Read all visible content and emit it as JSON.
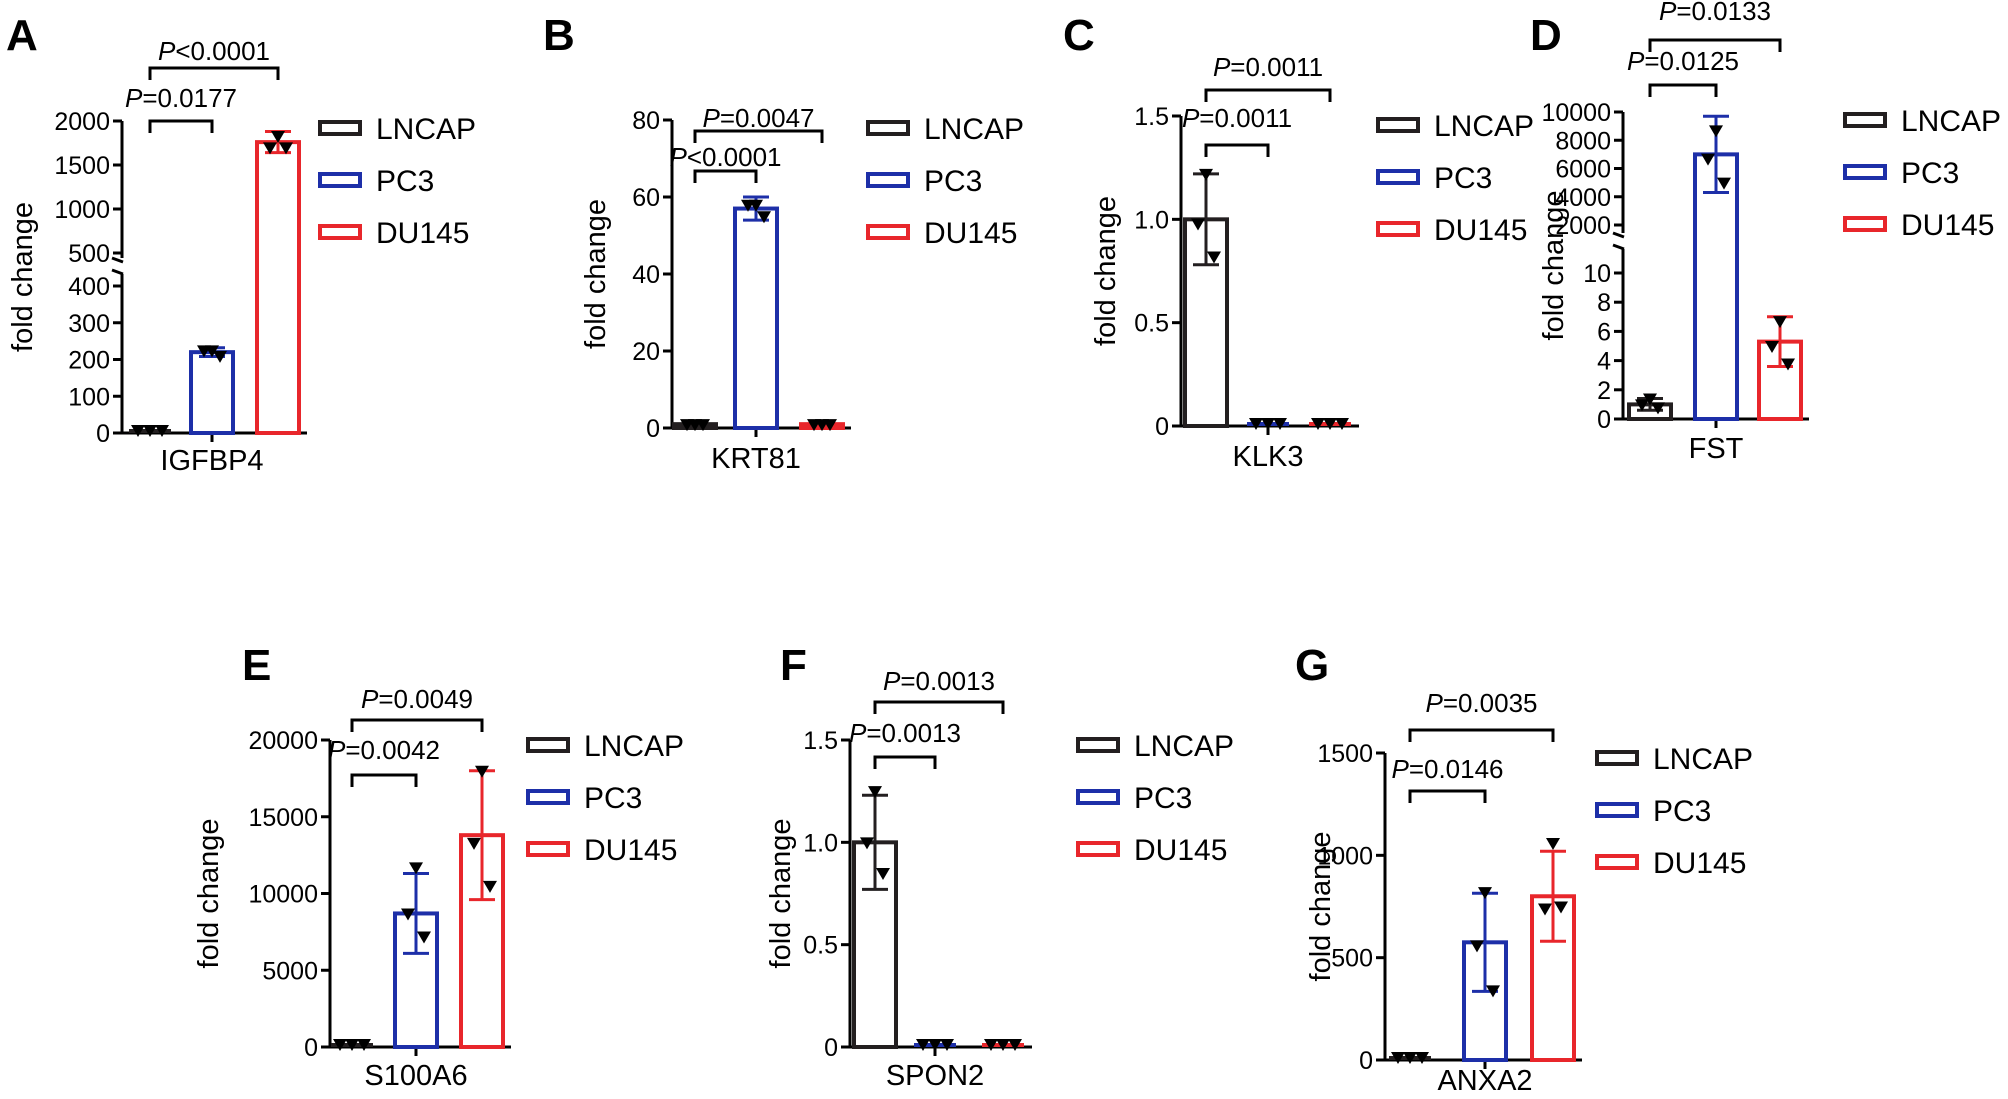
{
  "figure": {
    "description_legend": [
      "LNCAP",
      "PC3",
      "DU145"
    ]
  },
  "colors": {
    "LNCAP": "#231f20",
    "PC3": "#1d2fa8",
    "DU145": "#e8262b",
    "axis": "#000000",
    "point": "#000000"
  },
  "chart_data": [
    {
      "panel": "A",
      "type": "bar",
      "gene": "IGFBP4",
      "ylabel": "fold change",
      "broken_axis": true,
      "lower_range": [
        0,
        400
      ],
      "lower_ticks": [
        0,
        100,
        200,
        300,
        400
      ],
      "upper_range": [
        500,
        2000
      ],
      "upper_ticks": [
        500,
        1000,
        1500,
        2000
      ],
      "categories": [
        "LNCAP",
        "PC3",
        "DU145"
      ],
      "values": [
        1,
        220,
        1760
      ],
      "errors": [
        0,
        12,
        120
      ],
      "points": [
        [
          1,
          1,
          1
        ],
        [
          225,
          225,
          210
        ],
        [
          1830,
          1700,
          1700
        ]
      ],
      "pvalues": [
        {
          "prefix": "P",
          "text": "=0.0177",
          "from": 0,
          "to": 1
        },
        {
          "prefix": "P",
          "text": "<0.0001",
          "from": 0,
          "to": 2
        }
      ]
    },
    {
      "panel": "B",
      "type": "bar",
      "gene": "KRT81",
      "ylabel": "fold change",
      "broken_axis": false,
      "range": [
        0,
        80
      ],
      "ticks": [
        0,
        20,
        40,
        60,
        80
      ],
      "categories": [
        "LNCAP",
        "PC3",
        "DU145"
      ],
      "values": [
        1,
        57,
        1
      ],
      "errors": [
        0,
        3,
        0
      ],
      "points": [
        [
          1,
          1,
          1
        ],
        [
          58,
          58,
          55
        ],
        [
          1,
          1,
          1
        ]
      ],
      "pvalues": [
        {
          "prefix": "P",
          "text": "<0.0001",
          "from": 0,
          "to": 1
        },
        {
          "prefix": "P",
          "text": "=0.0047",
          "from": 0,
          "to": 2
        }
      ]
    },
    {
      "panel": "C",
      "type": "bar",
      "gene": "KLK3",
      "ylabel": "fold change",
      "broken_axis": false,
      "range": [
        0,
        1.5
      ],
      "ticks": [
        0,
        0.5,
        1.0,
        1.5
      ],
      "tick_labels": [
        "0",
        "0.5",
        "1.0",
        "1.5"
      ],
      "categories": [
        "LNCAP",
        "PC3",
        "DU145"
      ],
      "values": [
        1.0,
        0.01,
        0.01
      ],
      "errors": [
        0.22,
        0,
        0
      ],
      "points": [
        [
          1.22,
          0.98,
          0.82
        ],
        [
          0.01,
          0.01,
          0.01
        ],
        [
          0.01,
          0.01,
          0.01
        ]
      ],
      "pvalues": [
        {
          "prefix": "P",
          "text": "=0.0011",
          "from": 0,
          "to": 1
        },
        {
          "prefix": "P",
          "text": "=0.0011",
          "from": 0,
          "to": 2
        }
      ]
    },
    {
      "panel": "D",
      "type": "bar",
      "gene": "FST",
      "ylabel": "fold change",
      "broken_axis": true,
      "lower_range": [
        0,
        10
      ],
      "lower_ticks": [
        0,
        2,
        4,
        6,
        8,
        10
      ],
      "upper_range": [
        2000,
        10000
      ],
      "upper_ticks": [
        2000,
        4000,
        6000,
        8000,
        10000
      ],
      "categories": [
        "LNCAP",
        "PC3",
        "DU145"
      ],
      "values": [
        1.0,
        7000,
        5.3
      ],
      "errors": [
        0.4,
        2700,
        1.7
      ],
      "points": [
        [
          1.4,
          1.0,
          0.8
        ],
        [
          8700,
          6700,
          5000
        ],
        [
          6.7,
          5.0,
          3.8
        ]
      ],
      "pvalues": [
        {
          "prefix": "P",
          "text": "=0.0125",
          "from": 0,
          "to": 1
        },
        {
          "prefix": "P",
          "text": "=0.0133",
          "from": 0,
          "to": 2
        }
      ]
    },
    {
      "panel": "E",
      "type": "bar",
      "gene": "S100A6",
      "ylabel": "fold change",
      "broken_axis": false,
      "range": [
        0,
        20000
      ],
      "ticks": [
        0,
        5000,
        10000,
        15000,
        20000
      ],
      "categories": [
        "LNCAP",
        "PC3",
        "DU145"
      ],
      "values": [
        10,
        8700,
        13800
      ],
      "errors": [
        0,
        2600,
        4200
      ],
      "points": [
        [
          10,
          10,
          10
        ],
        [
          11700,
          8700,
          7200
        ],
        [
          18000,
          13300,
          10500
        ]
      ],
      "pvalues": [
        {
          "prefix": "P",
          "text": "=0.0042",
          "from": 0,
          "to": 1
        },
        {
          "prefix": "P",
          "text": "=0.0049",
          "from": 0,
          "to": 2
        }
      ]
    },
    {
      "panel": "F",
      "type": "bar",
      "gene": "SPON2",
      "ylabel": "fold change",
      "broken_axis": false,
      "range": [
        0,
        1.5
      ],
      "ticks": [
        0,
        0.5,
        1.0,
        1.5
      ],
      "tick_labels": [
        "0",
        "0.5",
        "1.0",
        "1.5"
      ],
      "categories": [
        "LNCAP",
        "PC3",
        "DU145"
      ],
      "values": [
        1.0,
        0.01,
        0.01
      ],
      "errors": [
        0.23,
        0,
        0
      ],
      "points": [
        [
          1.25,
          1.0,
          0.85
        ],
        [
          0.01,
          0.01,
          0.01
        ],
        [
          0.01,
          0.01,
          0.01
        ]
      ],
      "pvalues": [
        {
          "prefix": "P",
          "text": "=0.0013",
          "from": 0,
          "to": 1
        },
        {
          "prefix": "P",
          "text": "=0.0013",
          "from": 0,
          "to": 2
        }
      ]
    },
    {
      "panel": "G",
      "type": "bar",
      "gene": "ANXA2",
      "ylabel": "fold change",
      "broken_axis": false,
      "range": [
        0,
        1500
      ],
      "ticks": [
        0,
        500,
        1000,
        1500
      ],
      "categories": [
        "LNCAP",
        "PC3",
        "DU145"
      ],
      "values": [
        3,
        575,
        800
      ],
      "errors": [
        0,
        240,
        220
      ],
      "points": [
        [
          3,
          3,
          3
        ],
        [
          820,
          560,
          340
        ],
        [
          1060,
          740,
          750
        ]
      ],
      "pvalues": [
        {
          "prefix": "P",
          "text": "=0.0146",
          "from": 0,
          "to": 1
        },
        {
          "prefix": "P",
          "text": "=0.0035",
          "from": 0,
          "to": 2
        }
      ]
    }
  ]
}
